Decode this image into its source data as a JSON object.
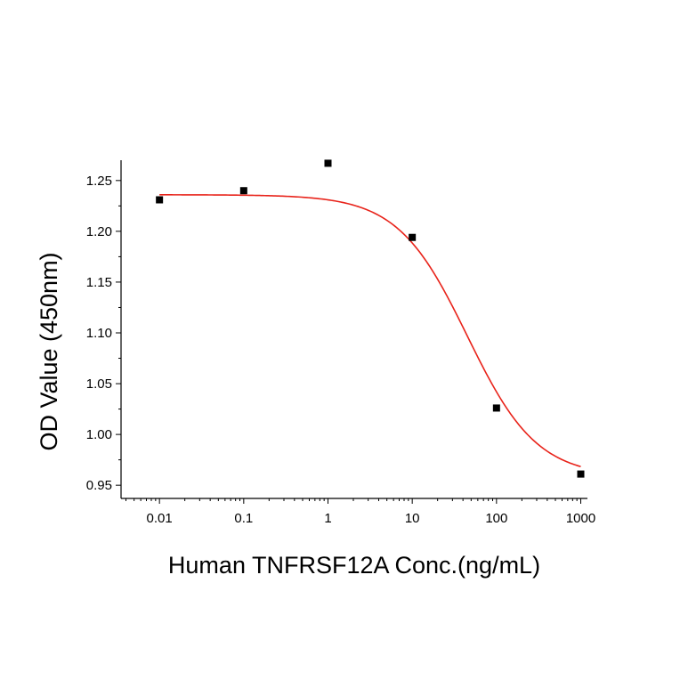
{
  "chart_data": {
    "type": "scatter",
    "title": "",
    "xlabel": "Human TNFRSF12A Conc.(ng/mL)",
    "ylabel": "OD Value (450nm)",
    "xscale": "log",
    "xlim": [
      0.0035,
      1200
    ],
    "ylim": [
      0.937,
      1.27
    ],
    "x_ticks": [
      0.01,
      0.1,
      1,
      10,
      100,
      1000
    ],
    "x_tick_labels": [
      "0.01",
      "0.1",
      "1",
      "10",
      "100",
      "1000"
    ],
    "y_ticks": [
      0.95,
      1.0,
      1.05,
      1.1,
      1.15,
      1.2,
      1.25
    ],
    "y_tick_labels": [
      "0.95",
      "1.00",
      "1.05",
      "1.10",
      "1.15",
      "1.20",
      "1.25"
    ],
    "grid": false,
    "legend": "none",
    "series": [
      {
        "points": [
          {
            "x": 0.01,
            "y": 1.231
          },
          {
            "x": 0.1,
            "y": 1.24
          },
          {
            "x": 1,
            "y": 1.267
          },
          {
            "x": 10,
            "y": 1.194
          },
          {
            "x": 100,
            "y": 1.026
          },
          {
            "x": 1000,
            "y": 0.961
          }
        ],
        "color": "#000000",
        "marker": "square"
      }
    ],
    "fit_curve": {
      "model": "4PL",
      "top": 1.236,
      "bottom": 0.958,
      "ec50": 45,
      "hill": 1.05,
      "color": "#e8231a"
    }
  }
}
